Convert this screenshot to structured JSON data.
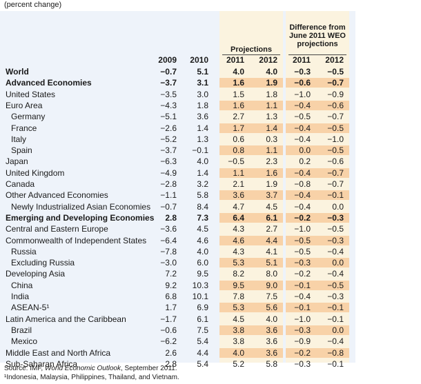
{
  "unit_note": "(percent change)",
  "header": {
    "diff_label_lines": [
      "Difference from",
      "June 2011 WEO",
      "projections"
    ],
    "projections_label": "Projections",
    "years": [
      "2009",
      "2010",
      "2011",
      "2012",
      "2011",
      "2012"
    ]
  },
  "rows": [
    {
      "label": "World",
      "level": 0,
      "bold": true,
      "values": [
        "−0.7",
        "5.1",
        "4.0",
        "4.0",
        "−0.3",
        "−0.5"
      ]
    },
    {
      "label": "Advanced Economies",
      "level": 1,
      "bold": true,
      "values": [
        "−3.7",
        "3.1",
        "1.6",
        "1.9",
        "−0.6",
        "−0.7"
      ]
    },
    {
      "label": "United States",
      "level": 1,
      "bold": false,
      "values": [
        "−3.5",
        "3.0",
        "1.5",
        "1.8",
        "−1.0",
        "−0.9"
      ]
    },
    {
      "label": "Euro Area",
      "level": 1,
      "bold": false,
      "values": [
        "−4.3",
        "1.8",
        "1.6",
        "1.1",
        "−0.4",
        "−0.6"
      ]
    },
    {
      "label": "Germany",
      "level": 2,
      "bold": false,
      "values": [
        "−5.1",
        "3.6",
        "2.7",
        "1.3",
        "−0.5",
        "−0.7"
      ]
    },
    {
      "label": "France",
      "level": 2,
      "bold": false,
      "values": [
        "−2.6",
        "1.4",
        "1.7",
        "1.4",
        "−0.4",
        "−0.5"
      ]
    },
    {
      "label": "Italy",
      "level": 2,
      "bold": false,
      "values": [
        "−5.2",
        "1.3",
        "0.6",
        "0.3",
        "−0.4",
        "−1.0"
      ]
    },
    {
      "label": "Spain",
      "level": 2,
      "bold": false,
      "values": [
        "−3.7",
        "−0.1",
        "0.8",
        "1.1",
        "0.0",
        "−0.5"
      ]
    },
    {
      "label": "Japan",
      "level": 1,
      "bold": false,
      "values": [
        "−6.3",
        "4.0",
        "−0.5",
        "2.3",
        "0.2",
        "−0.6"
      ]
    },
    {
      "label": "United Kingdom",
      "level": 1,
      "bold": false,
      "values": [
        "−4.9",
        "1.4",
        "1.1",
        "1.6",
        "−0.4",
        "−0.7"
      ]
    },
    {
      "label": "Canada",
      "level": 1,
      "bold": false,
      "values": [
        "−2.8",
        "3.2",
        "2.1",
        "1.9",
        "−0.8",
        "−0.7"
      ]
    },
    {
      "label": "Other Advanced Economies",
      "level": 1,
      "bold": false,
      "values": [
        "−1.1",
        "5.8",
        "3.6",
        "3.7",
        "−0.4",
        "−0.1"
      ]
    },
    {
      "label": "Newly Industrialized Asian Economies",
      "level": 2,
      "bold": false,
      "values": [
        "−0.7",
        "8.4",
        "4.7",
        "4.5",
        "−0.4",
        "0.0"
      ]
    },
    {
      "label": "Emerging and Developing Economies",
      "level": 1,
      "bold": true,
      "values": [
        "2.8",
        "7.3",
        "6.4",
        "6.1",
        "−0.2",
        "−0.3"
      ]
    },
    {
      "label": "Central and Eastern Europe",
      "level": 1,
      "bold": false,
      "values": [
        "−3.6",
        "4.5",
        "4.3",
        "2.7",
        "−1.0",
        "−0.5"
      ]
    },
    {
      "label": "Commonwealth of Independent States",
      "level": 1,
      "bold": false,
      "values": [
        "−6.4",
        "4.6",
        "4.6",
        "4.4",
        "−0.5",
        "−0.3"
      ]
    },
    {
      "label": "Russia",
      "level": 2,
      "bold": false,
      "values": [
        "−7.8",
        "4.0",
        "4.3",
        "4.1",
        "−0.5",
        "−0.4"
      ]
    },
    {
      "label": "Excluding Russia",
      "level": 2,
      "bold": false,
      "values": [
        "−3.0",
        "6.0",
        "5.3",
        "5.1",
        "−0.3",
        "0.0"
      ]
    },
    {
      "label": "Developing Asia",
      "level": 1,
      "bold": false,
      "values": [
        "7.2",
        "9.5",
        "8.2",
        "8.0",
        "−0.2",
        "−0.4"
      ]
    },
    {
      "label": "China",
      "level": 2,
      "bold": false,
      "values": [
        "9.2",
        "10.3",
        "9.5",
        "9.0",
        "−0.1",
        "−0.5"
      ]
    },
    {
      "label": "India",
      "level": 2,
      "bold": false,
      "values": [
        "6.8",
        "10.1",
        "7.8",
        "7.5",
        "−0.4",
        "−0.3"
      ]
    },
    {
      "label": "ASEAN-5¹",
      "level": 2,
      "bold": false,
      "values": [
        "1.7",
        "6.9",
        "5.3",
        "5.6",
        "−0.1",
        "−0.1"
      ]
    },
    {
      "label": "Latin America and the Caribbean",
      "level": 1,
      "bold": false,
      "values": [
        "−1.7",
        "6.1",
        "4.5",
        "4.0",
        "−1.0",
        "−0.1"
      ]
    },
    {
      "label": "Brazil",
      "level": 2,
      "bold": false,
      "values": [
        "−0.6",
        "7.5",
        "3.8",
        "3.6",
        "−0.3",
        "0.0"
      ]
    },
    {
      "label": "Mexico",
      "level": 2,
      "bold": false,
      "values": [
        "−6.2",
        "5.4",
        "3.8",
        "3.6",
        "−0.9",
        "−0.4"
      ]
    },
    {
      "label": "Middle East and North Africa",
      "level": 1,
      "bold": false,
      "values": [
        "2.6",
        "4.4",
        "4.0",
        "3.6",
        "−0.2",
        "−0.8"
      ]
    },
    {
      "label": "Sub-Saharan Africa",
      "level": 1,
      "bold": false,
      "values": [
        "2.8",
        "5.4",
        "5.2",
        "5.8",
        "−0.3",
        "−0.1"
      ]
    }
  ],
  "footer": {
    "source_prefix": "Source: IMF, ",
    "source_title": "World Economic Outlook",
    "source_suffix": ", September 2011.",
    "note": "¹Indonesia, Malaysia, Philippines, Thailand, and Vietnam."
  },
  "colors": {
    "card_bg": "#eef3fa",
    "band_bg": "#fbf3df",
    "highlight_bg": "#f8d2a8"
  }
}
